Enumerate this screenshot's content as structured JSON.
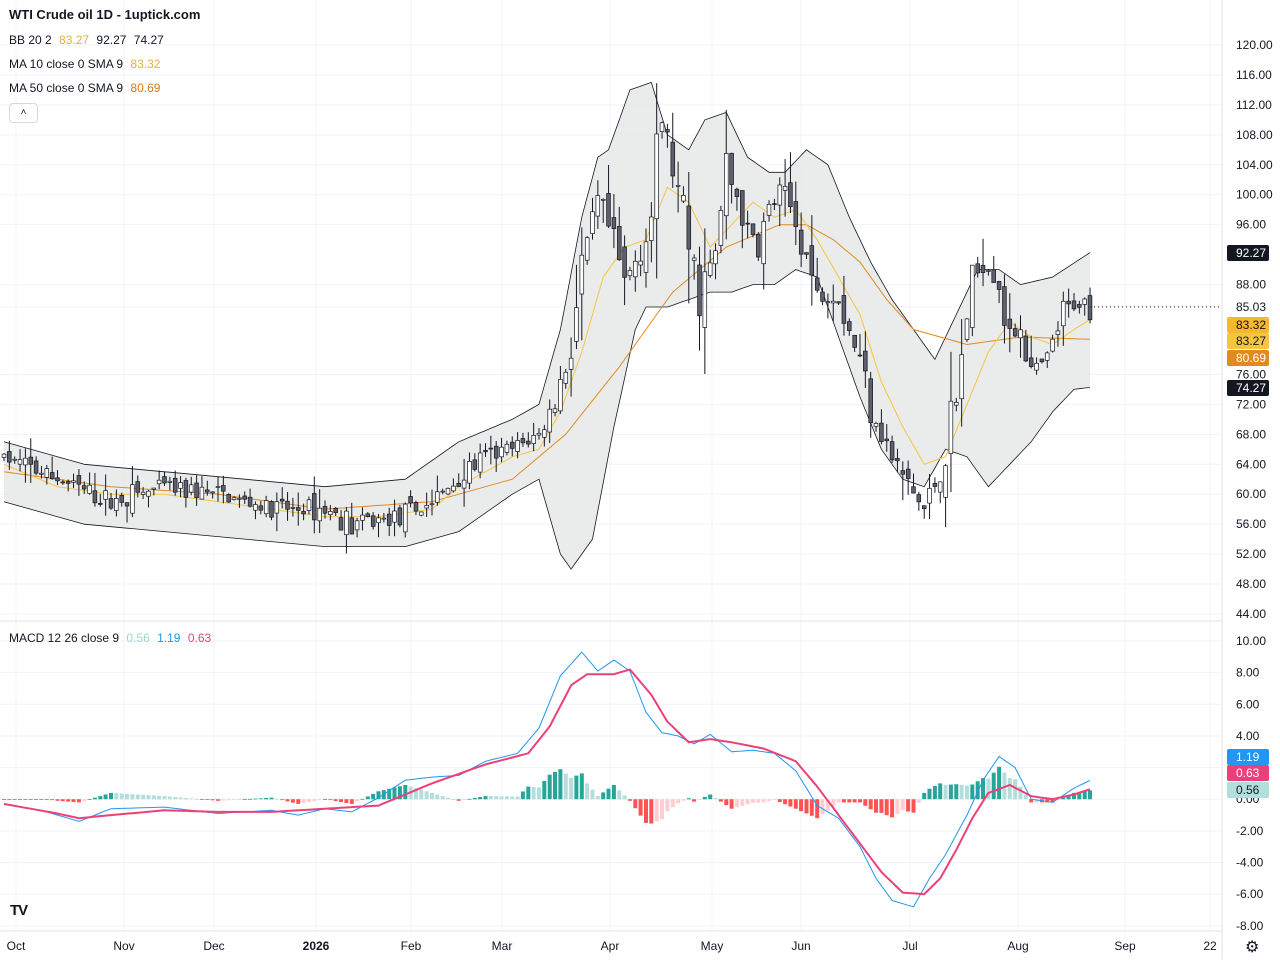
{
  "header": {
    "title": "WTI Crude oil  1D - 1uptick.com",
    "bb": {
      "label": "BB 20 2",
      "basis": "83.27",
      "upper": "92.27",
      "lower": "74.27"
    },
    "ma10": {
      "label": "MA 10 close 0 SMA 9",
      "value": "83.32"
    },
    "ma50": {
      "label": "MA 50 close 0 SMA 9",
      "value": "80.69"
    },
    "collapse_icon": "chevron-up-icon"
  },
  "macd_legend": {
    "label": "MACD 12 26 close 9",
    "hist": "0.56",
    "macd": "1.19",
    "signal": "0.63"
  },
  "colors": {
    "up_candle": "#ffffff",
    "down_candle": "#5d606b",
    "wick": "#131722",
    "ma10": "#f5c542",
    "ma50": "#e38a1e",
    "bb_fill": "#e6e7e8",
    "bb_line": "#131722",
    "macd_line": "#2196f3",
    "signal_line": "#ec407a",
    "hist_up_strong": "#26a69a",
    "hist_up_weak": "#b2dfdb",
    "hist_down_strong": "#ff5252",
    "hist_down_weak": "#ffcdd2"
  },
  "chart_data": [
    {
      "type": "candlestick",
      "x_axis_labels": [
        "Oct",
        "Nov",
        "Dec",
        "2026",
        "Feb",
        "Mar",
        "Apr",
        "May",
        "Jun",
        "Jul",
        "Aug",
        "Sep",
        "22"
      ],
      "y_axis_ticks": [
        "120.00",
        "116.00",
        "112.00",
        "108.00",
        "104.00",
        "100.00",
        "96.00",
        "88.00",
        "85.03",
        "76.00",
        "72.00",
        "68.00",
        "64.00",
        "60.00",
        "56.00",
        "52.00",
        "48.00",
        "44.00"
      ],
      "ylim": [
        44,
        120
      ],
      "price_labels": [
        {
          "value": 92.27,
          "text": "92.27",
          "role": "bb-upper"
        },
        {
          "value": 83.32,
          "text": "83.32",
          "role": "ma10"
        },
        {
          "value": 83.27,
          "text": "83.27",
          "role": "bb-basis"
        },
        {
          "value": 80.69,
          "text": "80.69",
          "role": "ma50"
        },
        {
          "value": 74.27,
          "text": "74.27",
          "role": "bb-lower"
        }
      ],
      "last_close": 85.03,
      "series_keypoints": {
        "close": [
          [
            0,
            65
          ],
          [
            10,
            62
          ],
          [
            20,
            59
          ],
          [
            30,
            61
          ],
          [
            40,
            60
          ],
          [
            50,
            58
          ],
          [
            60,
            58
          ],
          [
            65,
            56
          ],
          [
            75,
            57
          ],
          [
            80,
            59
          ],
          [
            85,
            62
          ],
          [
            90,
            65
          ],
          [
            95,
            66
          ],
          [
            100,
            68
          ],
          [
            103,
            72
          ],
          [
            106,
            80
          ],
          [
            108,
            90
          ],
          [
            111,
            99
          ],
          [
            113,
            95
          ],
          [
            116,
            88
          ],
          [
            119,
            93
          ],
          [
            121,
            97
          ],
          [
            123,
            110
          ],
          [
            125,
            104
          ],
          [
            127,
            96
          ],
          [
            130,
            87
          ],
          [
            133,
            92
          ],
          [
            135,
            103
          ],
          [
            137,
            100
          ],
          [
            139,
            95
          ],
          [
            141,
            93
          ],
          [
            143,
            98
          ],
          [
            145,
            100
          ],
          [
            147,
            98
          ],
          [
            150,
            92
          ],
          [
            152,
            86
          ],
          [
            155,
            88
          ],
          [
            158,
            82
          ],
          [
            160,
            78
          ],
          [
            163,
            70
          ],
          [
            166,
            65
          ],
          [
            170,
            60
          ],
          [
            172,
            58
          ],
          [
            175,
            63
          ],
          [
            178,
            72
          ],
          [
            180,
            85
          ],
          [
            183,
            92
          ],
          [
            186,
            88
          ],
          [
            188,
            80
          ],
          [
            190,
            83
          ],
          [
            192,
            76
          ],
          [
            195,
            78
          ],
          [
            198,
            84
          ],
          [
            201,
            86
          ],
          [
            203,
            85
          ]
        ],
        "ma10": [
          [
            0,
            64
          ],
          [
            10,
            61
          ],
          [
            20,
            60
          ],
          [
            30,
            60
          ],
          [
            40,
            59
          ],
          [
            50,
            58
          ],
          [
            60,
            57
          ],
          [
            70,
            57
          ],
          [
            80,
            58
          ],
          [
            85,
            61
          ],
          [
            90,
            63
          ],
          [
            95,
            65
          ],
          [
            100,
            66
          ],
          [
            104,
            71
          ],
          [
            108,
            79
          ],
          [
            112,
            89
          ],
          [
            116,
            93
          ],
          [
            120,
            94
          ],
          [
            124,
            101
          ],
          [
            128,
            99
          ],
          [
            132,
            93
          ],
          [
            136,
            96
          ],
          [
            140,
            99
          ],
          [
            144,
            97
          ],
          [
            148,
            98
          ],
          [
            152,
            94
          ],
          [
            156,
            89
          ],
          [
            160,
            84
          ],
          [
            164,
            75
          ],
          [
            168,
            69
          ],
          [
            172,
            64
          ],
          [
            176,
            65
          ],
          [
            180,
            72
          ],
          [
            184,
            79
          ],
          [
            188,
            83
          ],
          [
            192,
            81
          ],
          [
            196,
            80
          ],
          [
            200,
            82
          ],
          [
            203,
            83.32
          ]
        ],
        "ma50": [
          [
            0,
            63
          ],
          [
            20,
            61
          ],
          [
            40,
            60
          ],
          [
            60,
            58
          ],
          [
            80,
            59
          ],
          [
            95,
            62
          ],
          [
            105,
            68
          ],
          [
            115,
            77
          ],
          [
            125,
            87
          ],
          [
            135,
            93
          ],
          [
            145,
            96
          ],
          [
            150,
            96
          ],
          [
            155,
            94
          ],
          [
            160,
            91
          ],
          [
            165,
            86
          ],
          [
            170,
            82
          ],
          [
            175,
            81
          ],
          [
            180,
            80
          ],
          [
            190,
            81
          ],
          [
            203,
            80.69
          ]
        ],
        "bb_upper": [
          [
            0,
            67
          ],
          [
            15,
            64
          ],
          [
            30,
            63
          ],
          [
            45,
            62
          ],
          [
            60,
            61
          ],
          [
            75,
            62
          ],
          [
            85,
            67
          ],
          [
            95,
            70
          ],
          [
            100,
            72
          ],
          [
            104,
            82
          ],
          [
            108,
            97
          ],
          [
            111,
            105
          ],
          [
            113,
            106
          ],
          [
            117,
            114
          ],
          [
            121,
            115
          ],
          [
            124,
            108
          ],
          [
            128,
            106
          ],
          [
            131,
            110
          ],
          [
            135,
            111
          ],
          [
            139,
            105
          ],
          [
            143,
            103
          ],
          [
            146,
            103
          ],
          [
            150,
            106
          ],
          [
            154,
            104
          ],
          [
            158,
            97
          ],
          [
            162,
            91
          ],
          [
            166,
            86
          ],
          [
            170,
            82
          ],
          [
            174,
            78
          ],
          [
            178,
            84
          ],
          [
            182,
            90
          ],
          [
            186,
            90
          ],
          [
            190,
            88
          ],
          [
            196,
            89
          ],
          [
            203,
            92.27
          ]
        ],
        "bb_lower": [
          [
            0,
            59
          ],
          [
            15,
            56
          ],
          [
            30,
            55
          ],
          [
            45,
            54
          ],
          [
            60,
            53
          ],
          [
            75,
            53
          ],
          [
            85,
            55
          ],
          [
            95,
            60
          ],
          [
            100,
            62
          ],
          [
            104,
            52
          ],
          [
            106,
            50
          ],
          [
            110,
            54
          ],
          [
            114,
            69
          ],
          [
            118,
            82
          ],
          [
            120,
            85
          ],
          [
            124,
            85
          ],
          [
            128,
            86
          ],
          [
            132,
            87
          ],
          [
            136,
            87
          ],
          [
            140,
            88
          ],
          [
            144,
            88
          ],
          [
            148,
            90
          ],
          [
            152,
            89
          ],
          [
            156,
            81
          ],
          [
            160,
            73
          ],
          [
            164,
            66
          ],
          [
            168,
            62
          ],
          [
            172,
            61
          ],
          [
            176,
            66
          ],
          [
            180,
            65
          ],
          [
            184,
            61
          ],
          [
            188,
            64
          ],
          [
            192,
            67
          ],
          [
            196,
            71
          ],
          [
            200,
            74
          ],
          [
            203,
            74.27
          ]
        ]
      }
    },
    {
      "type": "line",
      "title": "MACD 12 26 close 9",
      "y_axis_ticks": [
        "10.00",
        "8.00",
        "6.00",
        "4.00",
        "2.00",
        "0.00",
        "-2.00",
        "-4.00",
        "-6.00",
        "-8.00"
      ],
      "ylim": [
        -8.5,
        10.2
      ],
      "last_values": {
        "macd": 1.19,
        "signal": 0.63,
        "hist": 0.56
      },
      "series": [
        {
          "name": "macd",
          "points": [
            [
              0,
              -0.3
            ],
            [
              8,
              -0.8
            ],
            [
              14,
              -1.4
            ],
            [
              20,
              -0.6
            ],
            [
              30,
              -0.5
            ],
            [
              40,
              -0.9
            ],
            [
              50,
              -0.7
            ],
            [
              55,
              -1.0
            ],
            [
              60,
              -0.6
            ],
            [
              65,
              -0.8
            ],
            [
              70,
              0.1
            ],
            [
              75,
              1.2
            ],
            [
              80,
              1.4
            ],
            [
              85,
              1.5
            ],
            [
              90,
              2.4
            ],
            [
              96,
              2.9
            ],
            [
              100,
              4.5
            ],
            [
              104,
              7.8
            ],
            [
              108,
              9.3
            ],
            [
              111,
              8.1
            ],
            [
              114,
              8.8
            ],
            [
              117,
              8.1
            ],
            [
              120,
              5.5
            ],
            [
              123,
              4.2
            ],
            [
              126,
              4.0
            ],
            [
              129,
              3.5
            ],
            [
              132,
              4.1
            ],
            [
              136,
              3.0
            ],
            [
              140,
              3.1
            ],
            [
              144,
              2.9
            ],
            [
              148,
              1.8
            ],
            [
              152,
              -0.4
            ],
            [
              156,
              -1.2
            ],
            [
              160,
              -3.0
            ],
            [
              163,
              -5.0
            ],
            [
              166,
              -6.4
            ],
            [
              170,
              -6.8
            ],
            [
              173,
              -5.0
            ],
            [
              176,
              -3.5
            ],
            [
              180,
              -1.0
            ],
            [
              183,
              1.2
            ],
            [
              186,
              2.7
            ],
            [
              189,
              2.0
            ],
            [
              192,
              0.0
            ],
            [
              196,
              -0.2
            ],
            [
              200,
              0.7
            ],
            [
              203,
              1.19
            ]
          ]
        },
        {
          "name": "signal",
          "points": [
            [
              0,
              -0.3
            ],
            [
              10,
              -0.9
            ],
            [
              14,
              -1.2
            ],
            [
              20,
              -1.0
            ],
            [
              30,
              -0.7
            ],
            [
              40,
              -0.8
            ],
            [
              50,
              -0.8
            ],
            [
              60,
              -0.6
            ],
            [
              70,
              -0.4
            ],
            [
              80,
              1.0
            ],
            [
              90,
              2.2
            ],
            [
              98,
              2.9
            ],
            [
              102,
              4.6
            ],
            [
              106,
              7.2
            ],
            [
              109,
              7.9
            ],
            [
              114,
              7.9
            ],
            [
              117,
              8.2
            ],
            [
              121,
              6.6
            ],
            [
              124,
              4.9
            ],
            [
              128,
              3.6
            ],
            [
              132,
              3.8
            ],
            [
              136,
              3.6
            ],
            [
              142,
              3.2
            ],
            [
              148,
              2.4
            ],
            [
              152,
              0.8
            ],
            [
              156,
              -1.0
            ],
            [
              160,
              -2.8
            ],
            [
              164,
              -4.6
            ],
            [
              168,
              -5.9
            ],
            [
              172,
              -6.0
            ],
            [
              175,
              -5.0
            ],
            [
              178,
              -3.2
            ],
            [
              181,
              -1.2
            ],
            [
              184,
              0.4
            ],
            [
              188,
              0.9
            ],
            [
              192,
              0.2
            ],
            [
              196,
              0.0
            ],
            [
              200,
              0.3
            ],
            [
              203,
              0.63
            ]
          ]
        }
      ]
    }
  ]
}
